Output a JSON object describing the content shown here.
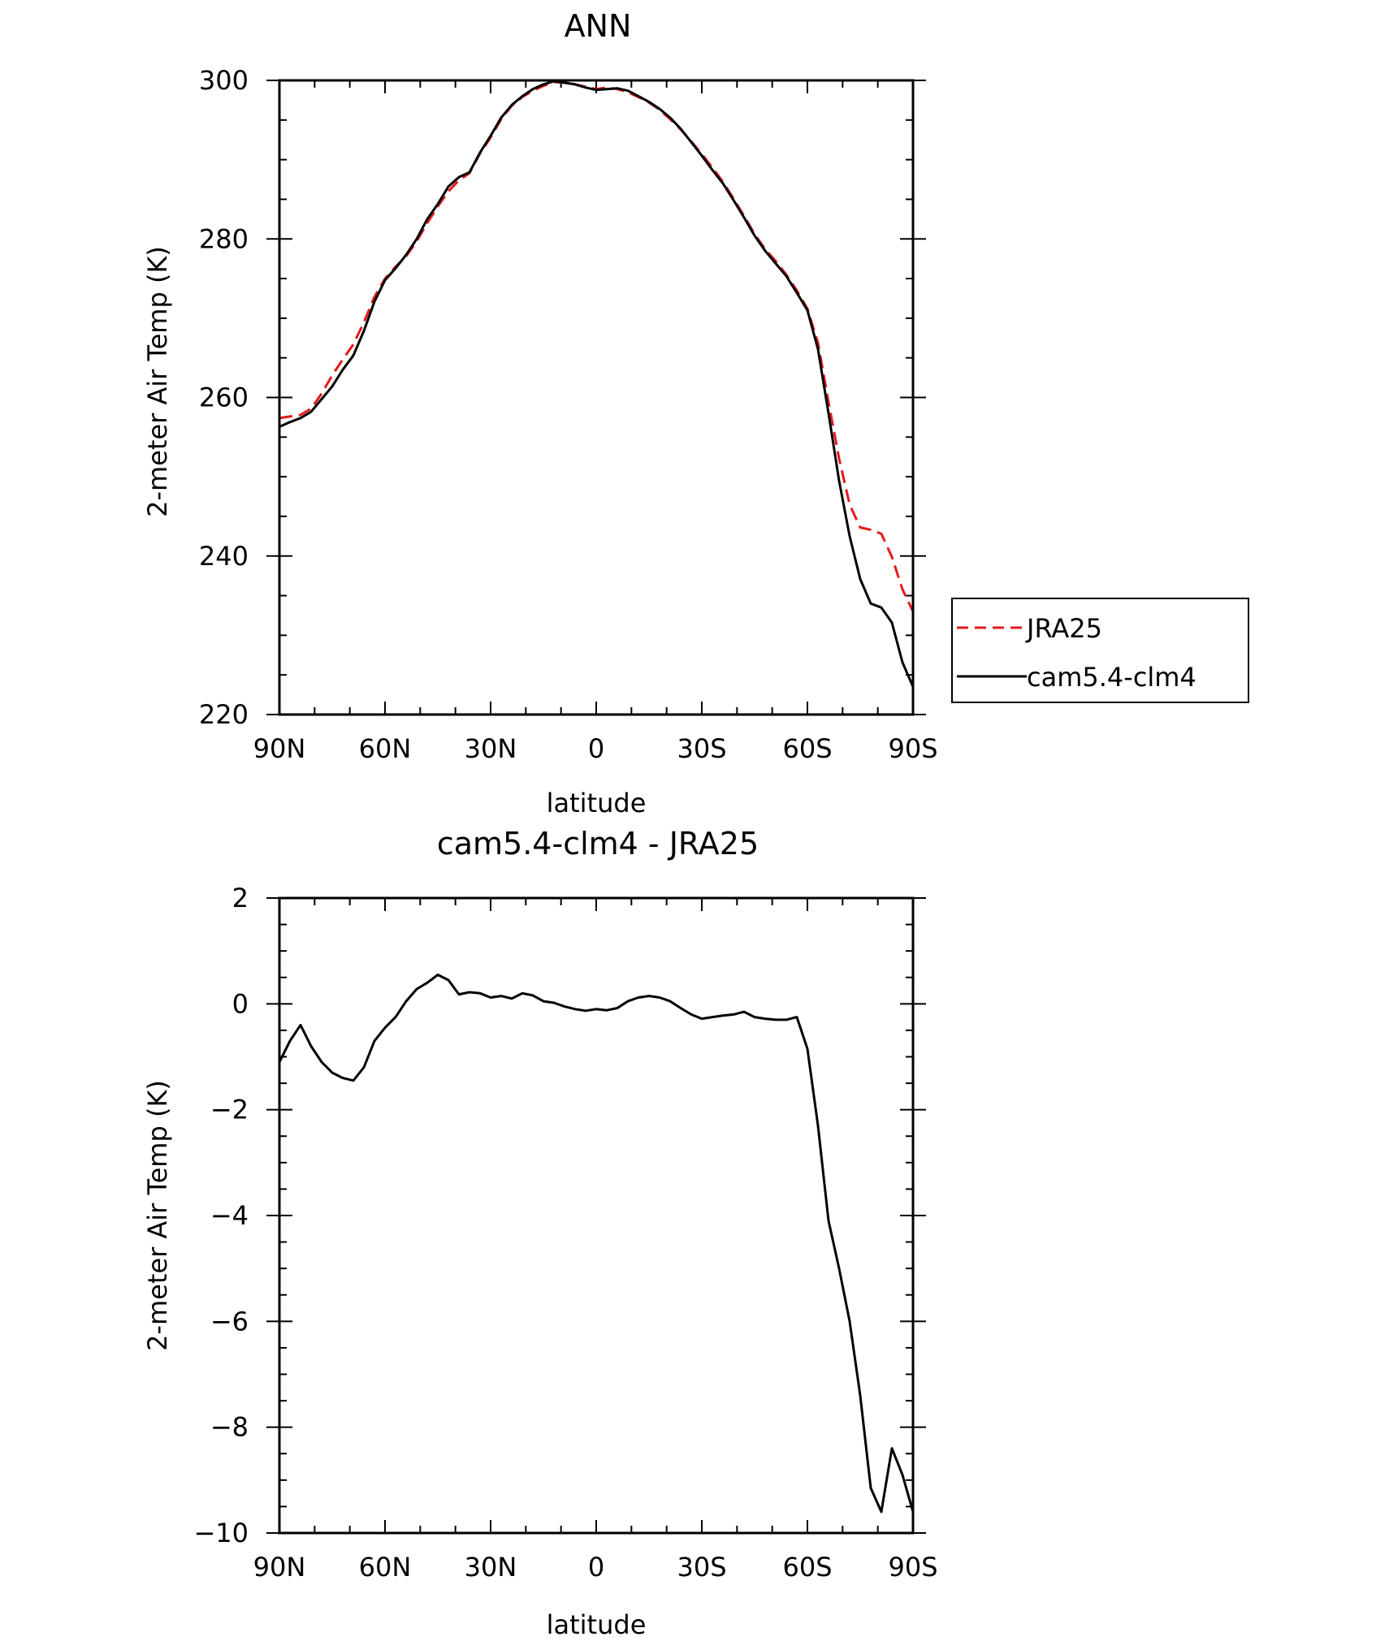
{
  "chart_data": [
    {
      "type": "line",
      "title": "ANN",
      "xlabel": "latitude",
      "ylabel": "2-meter Air Temp (K)",
      "xlim": [
        90,
        -90
      ],
      "ylim": [
        220,
        300
      ],
      "x_ticks": [
        90,
        60,
        30,
        0,
        -30,
        -60,
        -90
      ],
      "x_tick_labels": [
        "90N",
        "60N",
        "30N",
        "0",
        "30S",
        "60S",
        "90S"
      ],
      "y_ticks": [
        220,
        240,
        260,
        280,
        300
      ],
      "y_tick_labels": [
        "220",
        "240",
        "260",
        "280",
        "300"
      ],
      "legend": "right",
      "series": [
        {
          "name": "JRA25",
          "color": "#e41a1c",
          "dash": "dashed",
          "x": [
            90,
            87,
            84,
            81,
            78,
            75,
            72,
            69,
            66,
            63,
            60,
            57,
            54,
            51,
            48,
            45,
            42,
            39,
            36,
            33,
            30,
            27,
            24,
            21,
            18,
            15,
            12,
            9,
            6,
            3,
            0,
            -3,
            -6,
            -9,
            -12,
            -15,
            -18,
            -21,
            -24,
            -27,
            -30,
            -33,
            -36,
            -39,
            -42,
            -45,
            -48,
            -51,
            -54,
            -57,
            -60,
            -63,
            -66,
            -69,
            -72,
            -75,
            -78,
            -81,
            -84,
            -87,
            -90
          ],
          "y": [
            257.4,
            257.6,
            257.8,
            258.6,
            260.5,
            262.8,
            264.8,
            266.7,
            269.5,
            272.7,
            275.0,
            276.5,
            277.8,
            279.7,
            282.0,
            284.1,
            286.0,
            287.4,
            288.3,
            290.8,
            292.8,
            295.1,
            296.8,
            297.9,
            298.7,
            299.3,
            299.8,
            299.7,
            299.5,
            299.2,
            298.9,
            299.1,
            298.9,
            298.5,
            297.9,
            297.2,
            296.3,
            295.1,
            293.8,
            292.3,
            290.7,
            289.0,
            287.2,
            285.1,
            282.9,
            280.6,
            278.7,
            277.2,
            275.5,
            273.5,
            271.2,
            266.9,
            259.4,
            252.3,
            246.5,
            243.6,
            243.3,
            242.8,
            239.9,
            235.8,
            233.0
          ]
        },
        {
          "name": "cam5.4-clm4",
          "color": "#000000",
          "dash": "solid",
          "x": [
            90,
            87,
            84,
            81,
            78,
            75,
            72,
            69,
            66,
            63,
            60,
            57,
            54,
            51,
            48,
            45,
            42,
            39,
            36,
            33,
            30,
            27,
            24,
            21,
            18,
            15,
            12,
            9,
            6,
            3,
            0,
            -3,
            -6,
            -9,
            -12,
            -15,
            -18,
            -21,
            -24,
            -27,
            -30,
            -33,
            -36,
            -39,
            -42,
            -45,
            -48,
            -51,
            -54,
            -57,
            -60,
            -63,
            -66,
            -69,
            -72,
            -75,
            -78,
            -81,
            -84,
            -87,
            -90
          ],
          "y": [
            256.3,
            256.9,
            257.4,
            258.2,
            259.8,
            261.4,
            263.5,
            265.3,
            268.4,
            272.1,
            274.8,
            276.3,
            278.0,
            280.0,
            282.5,
            284.4,
            286.6,
            287.8,
            288.4,
            290.9,
            293.0,
            295.3,
            296.9,
            298.0,
            298.9,
            299.5,
            299.9,
            299.7,
            299.5,
            299.1,
            298.8,
            298.9,
            299.0,
            298.7,
            298.0,
            297.3,
            296.4,
            295.3,
            293.9,
            292.2,
            290.5,
            288.7,
            287.0,
            284.9,
            282.7,
            280.4,
            278.5,
            276.9,
            275.3,
            273.2,
            271.0,
            266.1,
            258.0,
            249.5,
            242.5,
            237.1,
            234.0,
            233.5,
            231.6,
            226.6,
            223.5
          ]
        }
      ]
    },
    {
      "type": "line",
      "title": "cam5.4-clm4 - JRA25",
      "xlabel": "latitude",
      "ylabel": "2-meter Air Temp (K)",
      "xlim": [
        90,
        -90
      ],
      "ylim": [
        -10,
        2
      ],
      "x_ticks": [
        90,
        60,
        30,
        0,
        -30,
        -60,
        -90
      ],
      "x_tick_labels": [
        "90N",
        "60N",
        "30N",
        "0",
        "30S",
        "60S",
        "90S"
      ],
      "y_ticks": [
        -10,
        -8,
        -6,
        -4,
        -2,
        0,
        2
      ],
      "y_tick_labels": [
        "−10",
        "−8",
        "−6",
        "−4",
        "−2",
        "0",
        "2"
      ],
      "series": [
        {
          "color": "#000000",
          "dash": "solid",
          "x": [
            90,
            87,
            84,
            81,
            78,
            75,
            72,
            69,
            66,
            63,
            60,
            57,
            54,
            51,
            48,
            45,
            42,
            39,
            36,
            33,
            30,
            27,
            24,
            21,
            18,
            15,
            12,
            9,
            6,
            3,
            0,
            -3,
            -6,
            -9,
            -12,
            -15,
            -18,
            -21,
            -24,
            -27,
            -30,
            -33,
            -36,
            -39,
            -42,
            -45,
            -48,
            -51,
            -54,
            -57,
            -60,
            -63,
            -66,
            -69,
            -72,
            -75,
            -78,
            -81,
            -84,
            -87,
            -90
          ],
          "y": [
            -1.1,
            -0.7,
            -0.4,
            -0.8,
            -1.1,
            -1.3,
            -1.4,
            -1.45,
            -1.2,
            -0.7,
            -0.45,
            -0.25,
            0.05,
            0.28,
            0.4,
            0.55,
            0.45,
            0.18,
            0.22,
            0.2,
            0.12,
            0.15,
            0.1,
            0.2,
            0.16,
            0.05,
            0.02,
            -0.05,
            -0.1,
            -0.13,
            -0.1,
            -0.12,
            -0.08,
            0.05,
            0.12,
            0.15,
            0.12,
            0.05,
            -0.08,
            -0.2,
            -0.28,
            -0.25,
            -0.22,
            -0.2,
            -0.15,
            -0.25,
            -0.28,
            -0.3,
            -0.3,
            -0.25,
            -0.85,
            -2.3,
            -4.1,
            -5.0,
            -6.0,
            -7.4,
            -9.15,
            -9.6,
            -8.4,
            -8.9,
            -9.6
          ]
        }
      ]
    }
  ]
}
